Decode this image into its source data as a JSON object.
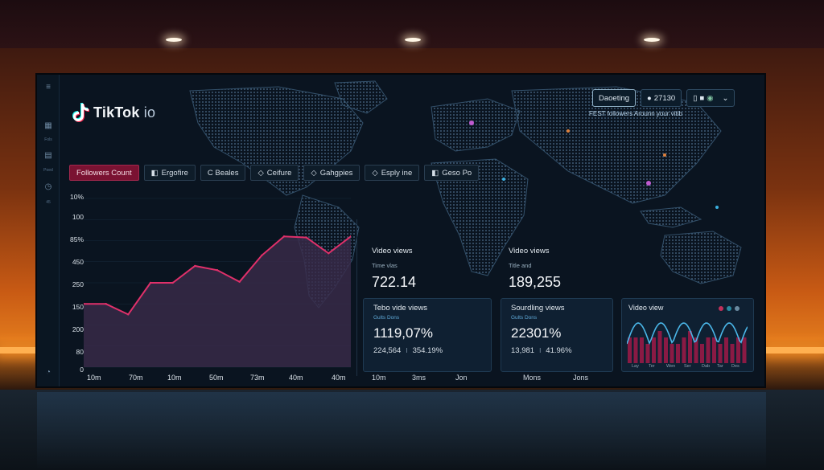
{
  "app": {
    "brand_name": "TikTok",
    "brand_suffix": " io",
    "tagline": "FEST followers Arounn your vitib"
  },
  "top_controls": {
    "primary_label": "Daoeting",
    "count_label": "27130"
  },
  "sidebar": {
    "items": [
      {
        "icon": "menu-icon"
      },
      {
        "icon": "grid-icon",
        "label": "Fols"
      },
      {
        "icon": "doc-icon",
        "label": "Poed"
      },
      {
        "icon": "clock-icon",
        "label": "45"
      }
    ]
  },
  "tabs": [
    {
      "label": "Followers Count",
      "active": true
    },
    {
      "label": "Ergofire",
      "active": false
    },
    {
      "label": "C Beales",
      "active": false
    },
    {
      "label": "Ceifure",
      "active": false
    },
    {
      "label": "Gahgpies",
      "active": false
    },
    {
      "label": "Esply ine",
      "active": false
    },
    {
      "label": "Geso Po",
      "active": false
    }
  ],
  "chart_data": {
    "type": "area",
    "y_tick_labels": [
      "10%",
      "100",
      "85%",
      "450",
      "250",
      "150",
      "200",
      "80",
      "0"
    ],
    "x_tick_labels": [
      "10m",
      "70m",
      "10m",
      "50m",
      "73m",
      "40m",
      "40m"
    ],
    "values": [
      60,
      60,
      50,
      80,
      80,
      96,
      92,
      81,
      106,
      124,
      123,
      108,
      124
    ],
    "ylim": [
      0,
      160
    ],
    "series_color": "#e0306a",
    "fill_color": "#3a2a4a"
  },
  "stats": [
    {
      "title": "Video views",
      "sub": "Time vlas",
      "value": "722.14"
    },
    {
      "title": "Video views",
      "sub": "Title and",
      "value": "189,255"
    }
  ],
  "cards": [
    {
      "title": "Tebo vide views",
      "sub": "Gults Dons",
      "value": "1119,07%",
      "foot_a": "224,564",
      "foot_b": "354.19%"
    },
    {
      "title": "Sourdling views",
      "sub": "Gults Dons",
      "value": "22301%",
      "foot_a": "13,981",
      "foot_b": "41.96%"
    }
  ],
  "mini_chart": {
    "title": "Video view",
    "dot_colors": [
      "#c0305a",
      "#2a8aa0",
      "#6a8aa0"
    ],
    "x_labels": [
      "Lay",
      "Ter",
      "Wen",
      "Ser",
      "Dab",
      "Tar",
      "Des"
    ],
    "bars": [
      4,
      4,
      4,
      3,
      4,
      5,
      4,
      3,
      3,
      4,
      5,
      4,
      3,
      4,
      4,
      3,
      4,
      3,
      4,
      4
    ],
    "wave_color": "#4ab6e8",
    "bar_color": "#8a1a44"
  },
  "bottom_x_labels": [
    {
      "label": "10m"
    },
    {
      "label": "3ms"
    },
    {
      "label": "Jon"
    },
    {
      "label": "Mons"
    },
    {
      "label": "Jons"
    }
  ]
}
